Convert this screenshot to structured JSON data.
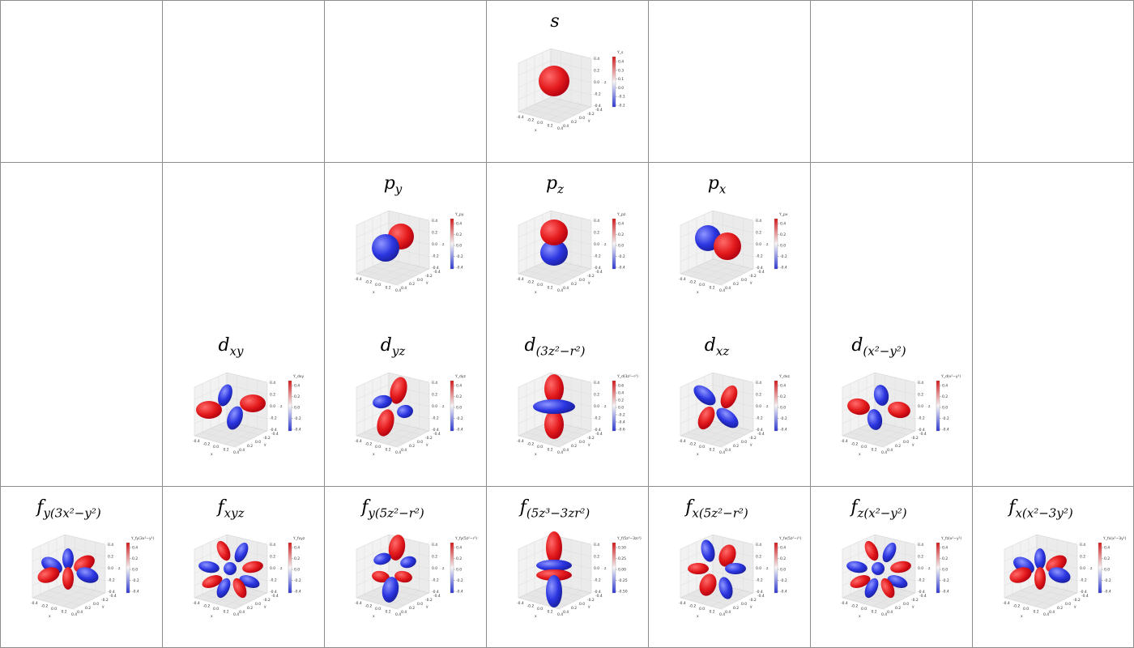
{
  "colors": {
    "positive": "#e31a1c",
    "negative": "#2b35e0",
    "grid_line": "#8c8c8c",
    "pane": "#f2f2f2"
  },
  "axis_ticks": [
    "-0.4",
    "-0.2",
    "0.0",
    "0.2",
    "0.4"
  ],
  "axis_labels": {
    "x": "x",
    "y": "y",
    "z": "z"
  },
  "panels": [
    {
      "id": "s",
      "row": 0,
      "col": 3,
      "title": "s",
      "colorbar_label": "Y_s",
      "colorbar_ticks": [
        "0.4",
        "0.3",
        "0.1",
        "0.0",
        "-0.1",
        "-0.2"
      ],
      "shape": "sphere"
    },
    {
      "id": "py",
      "row": 1,
      "col": 2,
      "title": "p_y",
      "colorbar_label": "Y_py",
      "colorbar_ticks": [
        "0.4",
        "0.2",
        "0.0",
        "-0.2",
        "-0.4"
      ],
      "shape": "p_y"
    },
    {
      "id": "pz",
      "row": 1,
      "col": 3,
      "title": "p_z",
      "colorbar_label": "Y_pz",
      "colorbar_ticks": [
        "0.4",
        "0.2",
        "0.0",
        "-0.2",
        "-0.4"
      ],
      "shape": "p_z"
    },
    {
      "id": "px",
      "row": 1,
      "col": 4,
      "title": "p_x",
      "colorbar_label": "Y_px",
      "colorbar_ticks": [
        "0.4",
        "0.2",
        "0.0",
        "-0.2",
        "-0.4"
      ],
      "shape": "p_x"
    },
    {
      "id": "dxy",
      "row": 2,
      "col": 1,
      "title": "d_xy",
      "colorbar_label": "Y_dxy",
      "colorbar_ticks": [
        "0.4",
        "0.2",
        "0.0",
        "-0.2",
        "-0.4"
      ],
      "shape": "d_xy"
    },
    {
      "id": "dyz",
      "row": 2,
      "col": 2,
      "title": "d_yz",
      "colorbar_label": "Y_dyz",
      "colorbar_ticks": [
        "0.4",
        "0.2",
        "0.0",
        "-0.2",
        "-0.4"
      ],
      "shape": "d_yz"
    },
    {
      "id": "dz2",
      "row": 2,
      "col": 3,
      "title": "d_(3z²−r²)",
      "colorbar_label": "Y_d(3z²−r²)",
      "colorbar_ticks": [
        "0.6",
        "0.4",
        "0.2",
        "0.0",
        "-0.2",
        "-0.4",
        "-0.6"
      ],
      "shape": "d_z2"
    },
    {
      "id": "dxz",
      "row": 2,
      "col": 4,
      "title": "d_xz",
      "colorbar_label": "Y_dxz",
      "colorbar_ticks": [
        "0.4",
        "0.2",
        "0.0",
        "-0.2",
        "-0.4"
      ],
      "shape": "d_xz"
    },
    {
      "id": "dx2y2",
      "row": 2,
      "col": 5,
      "title": "d_(x²−y²)",
      "colorbar_label": "Y_d(x²−y²)",
      "colorbar_ticks": [
        "0.4",
        "0.2",
        "0.0",
        "-0.2",
        "-0.4"
      ],
      "shape": "d_x2y2"
    },
    {
      "id": "f1",
      "row": 3,
      "col": 0,
      "title": "f_y(3x²−y²)",
      "colorbar_label": "Y_fy(3x²−y²)",
      "colorbar_ticks": [
        "0.4",
        "0.2",
        "0.0",
        "-0.2",
        "-0.4"
      ],
      "shape": "f_6h"
    },
    {
      "id": "f2",
      "row": 3,
      "col": 1,
      "title": "f_xyz",
      "colorbar_label": "Y_fxyz",
      "colorbar_ticks": [
        "0.4",
        "0.2",
        "0.0",
        "-0.2",
        "-0.4"
      ],
      "shape": "f_8"
    },
    {
      "id": "f3",
      "row": 3,
      "col": 2,
      "title": "f_y(5z²−r²)",
      "colorbar_label": "Y_fy(5z²−r²)",
      "colorbar_ticks": [
        "0.4",
        "0.2",
        "0.0",
        "-0.2",
        "-0.4"
      ],
      "shape": "f_6v"
    },
    {
      "id": "f4",
      "row": 3,
      "col": 3,
      "title": "f_(5z³−3zr²)",
      "colorbar_label": "Y_f(5z³−3zr²)",
      "colorbar_ticks": [
        "0.50",
        "0.25",
        "0.00",
        "-0.25",
        "-0.50"
      ],
      "shape": "f_z3"
    },
    {
      "id": "f5",
      "row": 3,
      "col": 4,
      "title": "f_x(5z²−r²)",
      "colorbar_label": "Y_fx(5z²−r²)",
      "colorbar_ticks": [
        "0.4",
        "0.2",
        "0.0",
        "-0.2",
        "-0.4"
      ],
      "shape": "f_6x"
    },
    {
      "id": "f6",
      "row": 3,
      "col": 5,
      "title": "f_z(x²−y²)",
      "colorbar_label": "Y_fz(x²−y²)",
      "colorbar_ticks": [
        "0.4",
        "0.2",
        "0.0",
        "-0.2",
        "-0.4"
      ],
      "shape": "f_8"
    },
    {
      "id": "f7",
      "row": 3,
      "col": 6,
      "title": "f_x(x²−3y²)",
      "colorbar_label": "Y_fx(x²−3y²)",
      "colorbar_ticks": [
        "0.4",
        "0.2",
        "0.0",
        "-0.2",
        "-0.4"
      ],
      "shape": "f_6h"
    }
  ]
}
